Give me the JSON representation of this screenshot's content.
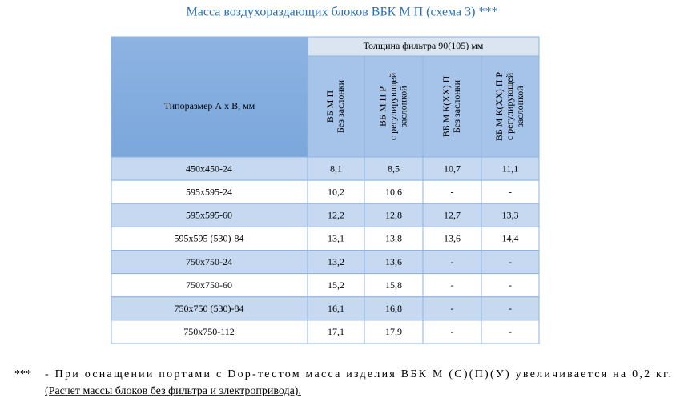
{
  "title": "Масса воздухораздающих  блоков ВБК М П (схема 3) ***",
  "table": {
    "corner": "Типоразмер А x В, мм",
    "group_header": "Толщина фильтра 90(105) мм",
    "columns": [
      [
        "ВБ М П",
        "Без заслонки"
      ],
      [
        "ВБ М П Р",
        "с регулирующей",
        "заслонкой"
      ],
      [
        "ВБ М К(ХХ) П",
        "Без заслонки"
      ],
      [
        "ВБ М К(ХХ) П Р",
        "с регулирующей",
        "заслонкой"
      ]
    ],
    "rows": [
      [
        "450x450-24",
        "8,1",
        "8,5",
        "10,7",
        "11,1"
      ],
      [
        "595x595-24",
        "10,2",
        "10,6",
        "-",
        "-"
      ],
      [
        "595x595-60",
        "12,2",
        "12,8",
        "12,7",
        "13,3"
      ],
      [
        "595x595 (530)-84",
        "13,1",
        "13,8",
        "13,6",
        "14,4"
      ],
      [
        "750x750-24",
        "13,2",
        "13,6",
        "-",
        "-"
      ],
      [
        "750x750-60",
        "15,2",
        "15,8",
        "-",
        "-"
      ],
      [
        "750x750 (530)-84",
        "16,1",
        "16,8",
        "-",
        "-"
      ],
      [
        "750x750-112",
        "17,1",
        "17,9",
        "-",
        "-"
      ]
    ]
  },
  "footnote": {
    "marker": "***",
    "text": "- При оснащении  портами с  Dop-тестом  масса  изделия  ВБК М (С)(П)(У) увеличивается  на  0,2 кг.",
    "note": "(Расчет массы блоков без фильтра и электропривода)."
  }
}
